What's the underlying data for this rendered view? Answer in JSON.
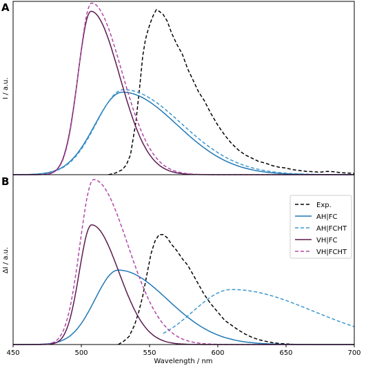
{
  "colors": {
    "Exp.": "#000000",
    "AH|FC": "#1f77b4",
    "AH|FCHT": "#3a97cf",
    "VH|FC": "#5a1a4e",
    "VH|FCHT": "#b047a8"
  },
  "chart_data": [
    {
      "type": "line",
      "panel": "A",
      "xlabel": "",
      "ylabel": "I / a.u.",
      "xlim": [
        450,
        700
      ],
      "ylim": [
        0,
        1.05
      ],
      "xticks": [],
      "legend": null,
      "series": [
        {
          "key": "Exp.",
          "dash": "dashed",
          "x": [
            520,
            525,
            530,
            533,
            536,
            540,
            543,
            545,
            547,
            549,
            551,
            553,
            555,
            557,
            560,
            563,
            566,
            570,
            574,
            578,
            582,
            586,
            590,
            595,
            600,
            605,
            610,
            615,
            620,
            625,
            630,
            635,
            640,
            645,
            650,
            655,
            660,
            665,
            670,
            675,
            680,
            685,
            690,
            695,
            700
          ],
          "y": [
            0,
            0.01,
            0.03,
            0.06,
            0.12,
            0.32,
            0.55,
            0.72,
            0.82,
            0.88,
            0.93,
            0.97,
            1.0,
            0.99,
            0.97,
            0.93,
            0.86,
            0.79,
            0.73,
            0.64,
            0.57,
            0.5,
            0.45,
            0.37,
            0.3,
            0.24,
            0.19,
            0.15,
            0.12,
            0.1,
            0.08,
            0.07,
            0.055,
            0.045,
            0.04,
            0.03,
            0.025,
            0.02,
            0.018,
            0.015,
            0.02,
            0.018,
            0.012,
            0.01,
            0.008
          ]
        },
        {
          "key": "AH|FC",
          "dash": "solid",
          "peak_x": 530,
          "peak_y": 0.5,
          "sl": 20,
          "sr": 40
        },
        {
          "key": "AH|FCHT",
          "dash": "dashed",
          "peak_x": 531,
          "peak_y": 0.515,
          "sl": 20,
          "sr": 42
        },
        {
          "key": "VH|FC",
          "dash": "solid",
          "peak_x": 507,
          "peak_y": 0.99,
          "sl": 9.5,
          "sr": 21
        },
        {
          "key": "VH|FCHT",
          "dash": "dashed",
          "peak_x": 507.5,
          "peak_y": 1.04,
          "sl": 9.5,
          "sr": 22
        }
      ]
    },
    {
      "type": "line",
      "panel": "B",
      "xlabel": "Wavelength / nm",
      "ylabel": "ΔI / a.u.",
      "xlim": [
        450,
        700
      ],
      "ylim": [
        0,
        1.05
      ],
      "xticks": [
        450,
        500,
        550,
        600,
        650,
        700
      ],
      "legend": "top-right",
      "series": [
        {
          "key": "Exp.",
          "dash": "dashed",
          "x": [
            527,
            531,
            535,
            539,
            542,
            545,
            548,
            551,
            554,
            557,
            560,
            563,
            566,
            570,
            574,
            578,
            582,
            586,
            590,
            595,
            600,
            605,
            610,
            615,
            620,
            625,
            630,
            635,
            640,
            645,
            650,
            655
          ],
          "y": [
            0,
            0.02,
            0.05,
            0.12,
            0.2,
            0.3,
            0.43,
            0.56,
            0.64,
            0.68,
            0.68,
            0.66,
            0.62,
            0.58,
            0.53,
            0.49,
            0.43,
            0.37,
            0.31,
            0.25,
            0.2,
            0.15,
            0.12,
            0.09,
            0.065,
            0.045,
            0.03,
            0.02,
            0.012,
            0.007,
            0.004,
            0.002
          ]
        },
        {
          "key": "AH|FC",
          "dash": "solid",
          "peak_x": 527,
          "peak_y": 0.46,
          "sl": 17,
          "sr": 36
        },
        {
          "key": "AH|FCHT",
          "dash": "dashed",
          "peak_x": 610,
          "peak_y": 0.34,
          "sl": 28,
          "sr": 60,
          "xmin": 560
        },
        {
          "key": "VH|FC",
          "dash": "solid",
          "peak_x": 507.5,
          "peak_y": 0.74,
          "sl": 9,
          "sr": 20
        },
        {
          "key": "VH|FCHT",
          "dash": "dashed",
          "peak_x": 509,
          "peak_y": 1.02,
          "sl": 10,
          "sr": 25
        }
      ]
    }
  ],
  "legend_items": [
    "Exp.",
    "AH|FC",
    "AH|FCHT",
    "VH|FC",
    "VH|FCHT"
  ]
}
